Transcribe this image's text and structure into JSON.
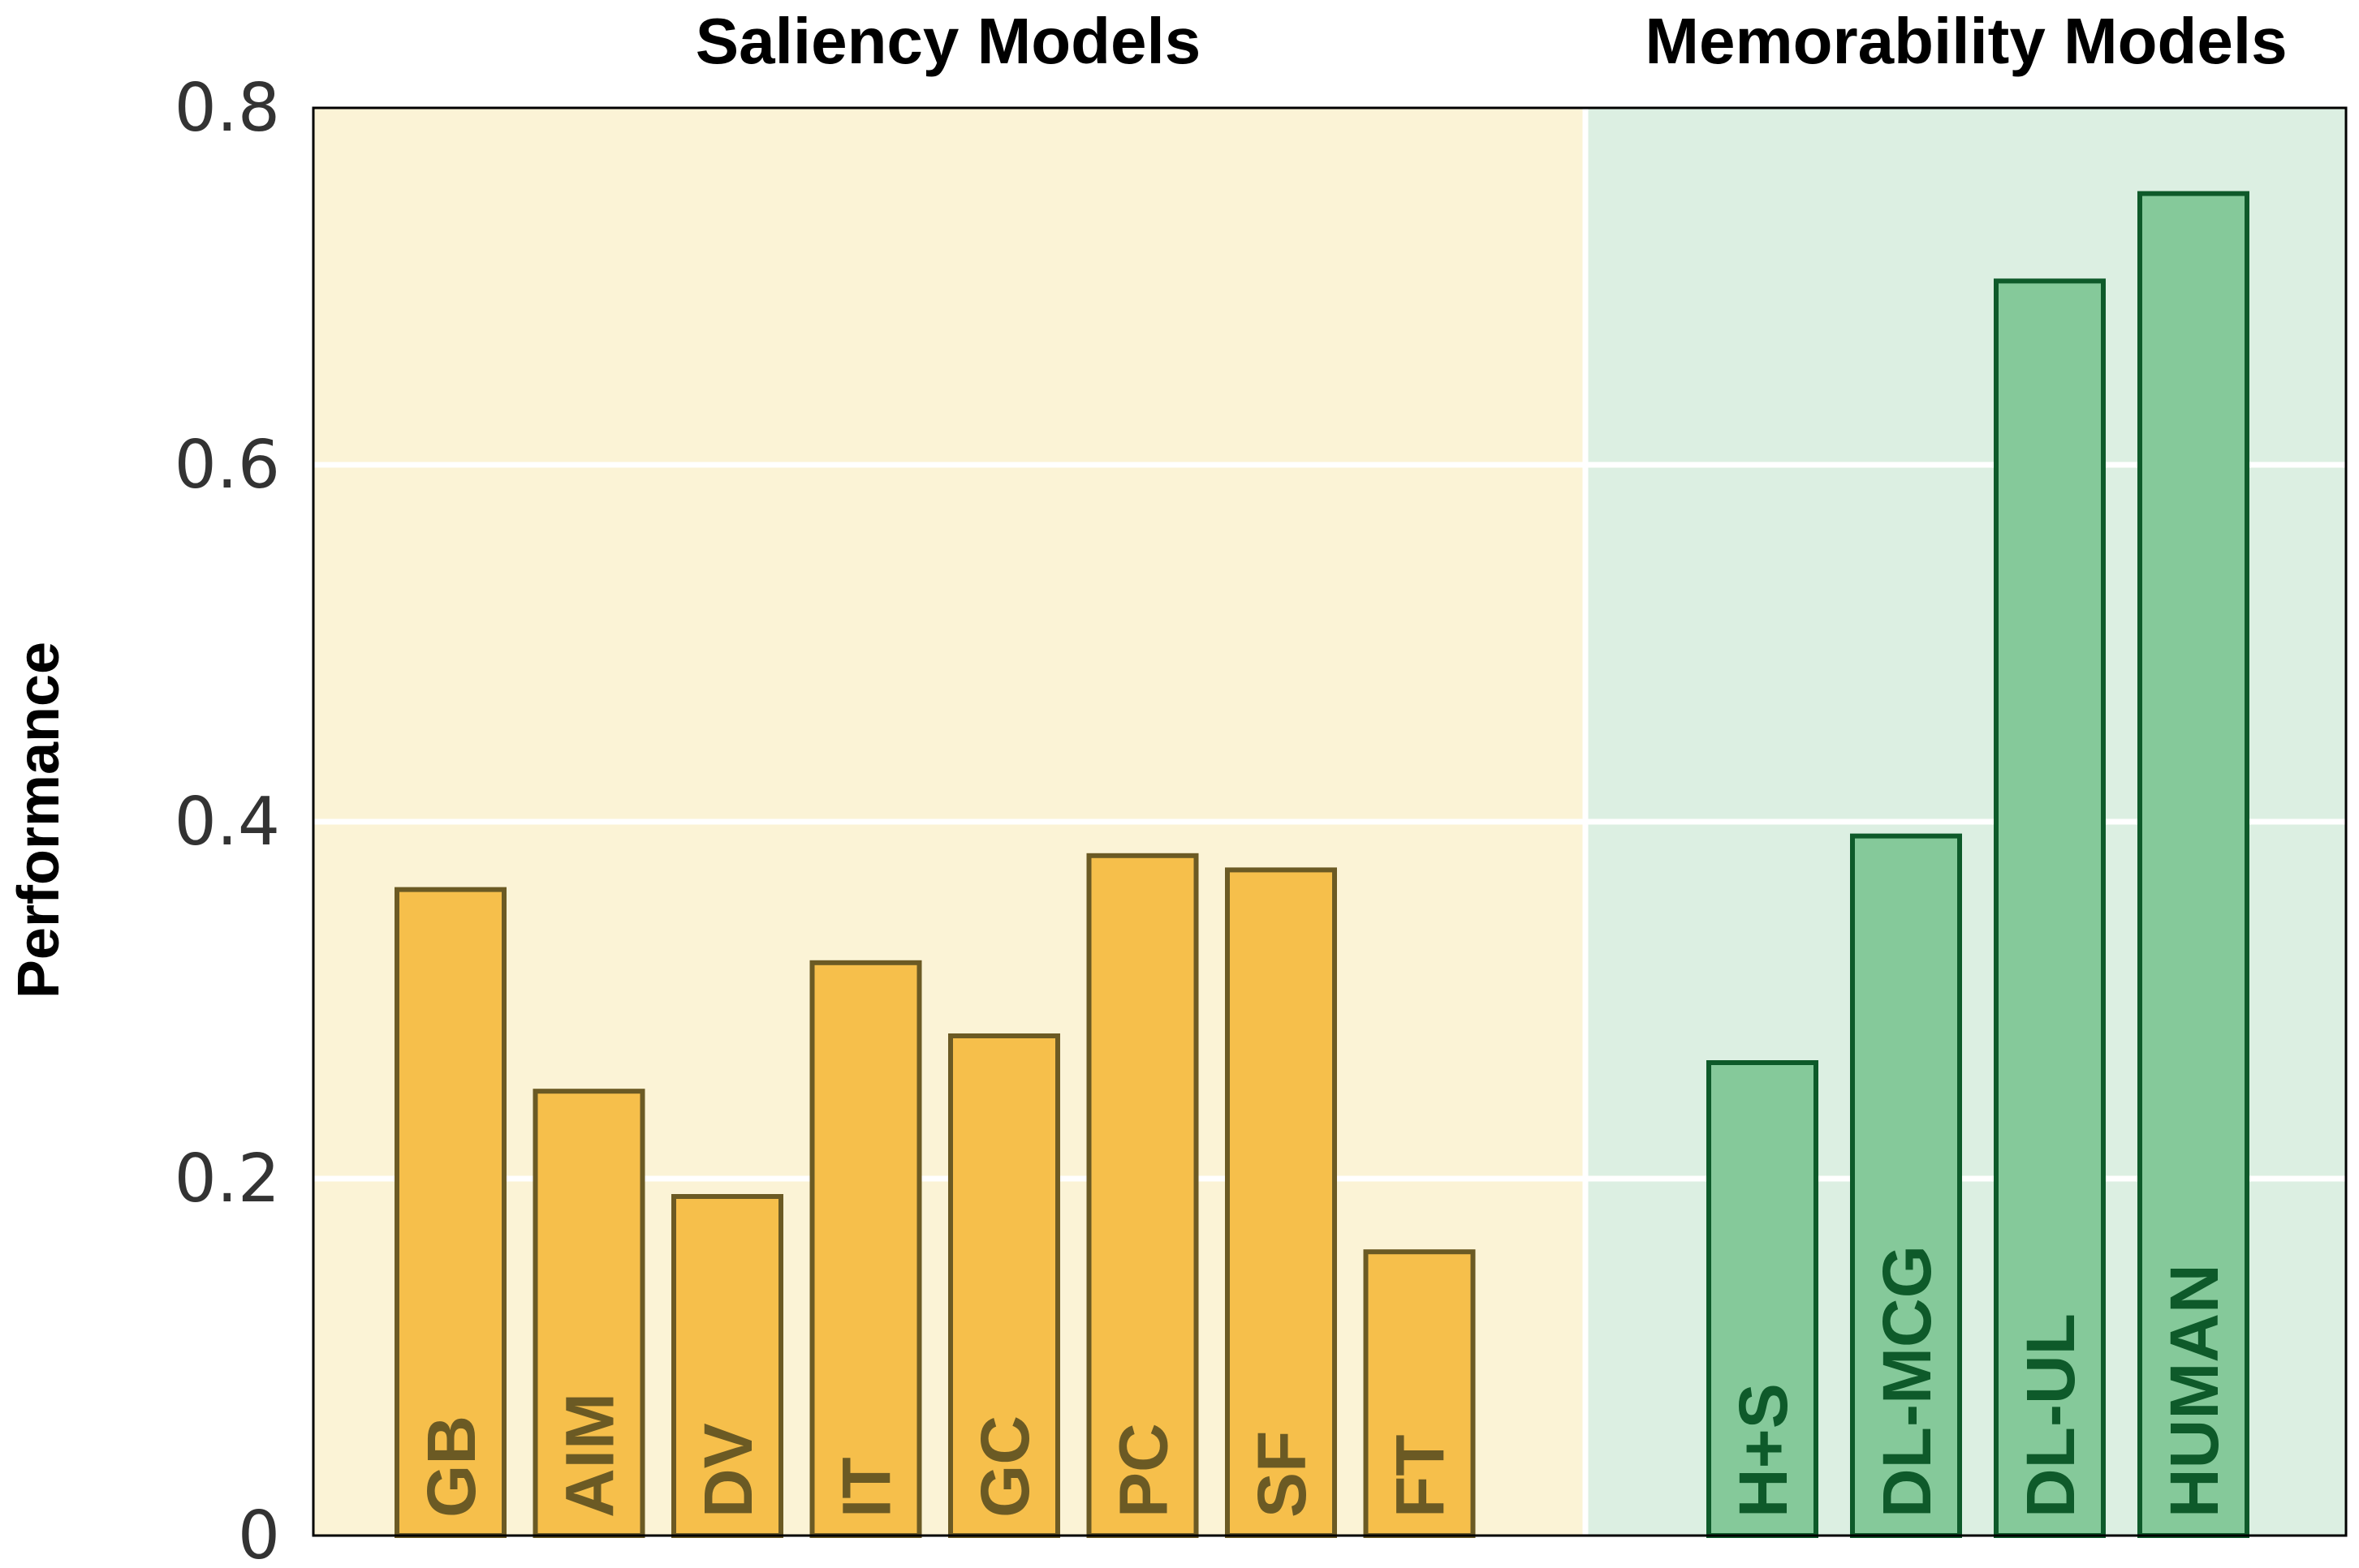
{
  "chart_data": {
    "type": "bar",
    "title": "",
    "xlabel": "",
    "ylabel": "Performance",
    "ylim": [
      0,
      0.8
    ],
    "yticks": [
      "0",
      "0.2",
      "0.4",
      "0.6",
      "0.8"
    ],
    "grid": true,
    "groups": [
      {
        "name": "Saliency Models",
        "background": "#fbf3d6",
        "bar_fill": "#f6bf4b",
        "bar_stroke": "#6b5a24",
        "label_color": "#6b5a24",
        "categories": [
          "GB",
          "AIM",
          "DV",
          "IT",
          "GC",
          "PC",
          "SF",
          "FT"
        ],
        "values": [
          0.362,
          0.249,
          0.19,
          0.321,
          0.28,
          0.381,
          0.373,
          0.159
        ]
      },
      {
        "name": "Memorability Models",
        "background": "#dcefe2",
        "bar_fill": "#85c99a",
        "bar_stroke": "#0e5a2a",
        "label_color": "#0e5a2a",
        "categories": [
          "H+S",
          "DL-MCG",
          "DL-UL",
          "HUMAN"
        ],
        "values": [
          0.265,
          0.392,
          0.703,
          0.752
        ]
      }
    ]
  }
}
